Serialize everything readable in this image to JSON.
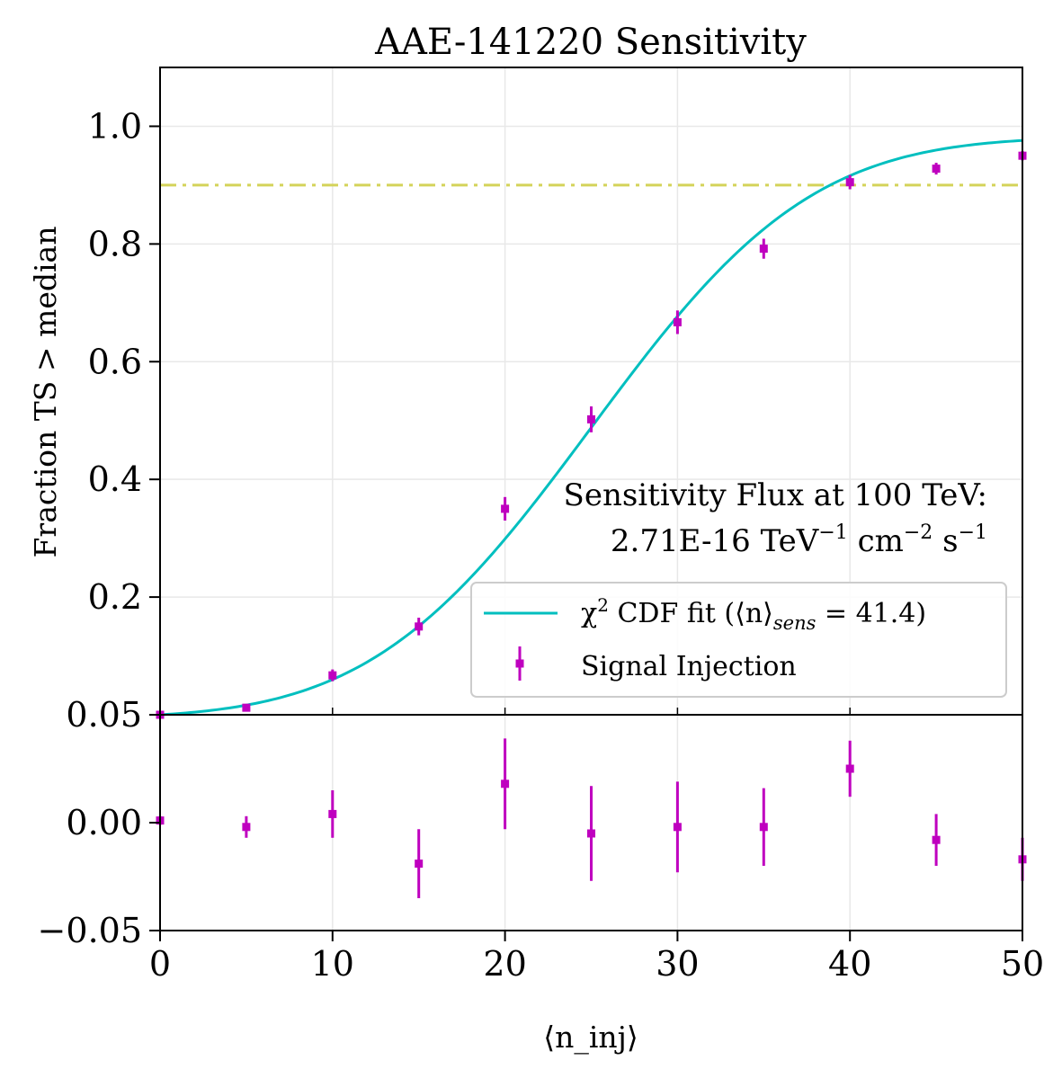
{
  "chart_data": {
    "type": "scatter",
    "title": "AAE-141220 Sensitivity",
    "xlabel": "⟨n_inj⟩",
    "ylabel": "Fraction TS > median",
    "xlim": [
      0,
      50
    ],
    "top_panel": {
      "ylim": [
        0.0,
        1.1
      ],
      "yticks": [
        0.05,
        0.2,
        0.4,
        0.6,
        0.8,
        1.0
      ],
      "ytick_labels": [
        "0.05",
        "0.2",
        "0.4",
        "0.6",
        "0.8",
        "1.0"
      ],
      "threshold": 0.9,
      "threshold_color": "#d4d35a",
      "fit_color": "#00bfbf",
      "fit_sens": 41.4,
      "fit_sigma_scale": 10.0
    },
    "bottom_panel": {
      "ylim": [
        -0.05,
        0.05
      ],
      "yticks": [
        -0.05,
        0.0,
        0.05
      ],
      "ytick_labels": [
        "−0.05",
        "0.00",
        "0.05"
      ]
    },
    "xticks": [
      0,
      10,
      20,
      30,
      40,
      50
    ],
    "xtick_labels": [
      "0",
      "10",
      "20",
      "30",
      "40",
      "50"
    ],
    "marker_color": "#bf00bf",
    "series": [
      {
        "name": "Signal Injection",
        "x": [
          0,
          5,
          10,
          15,
          20,
          25,
          30,
          35,
          40,
          45,
          50
        ],
        "y": [
          0.0,
          0.012,
          0.067,
          0.15,
          0.35,
          0.502,
          0.667,
          0.792,
          0.905,
          0.928,
          0.95
        ],
        "yerr": [
          0.002,
          0.005,
          0.01,
          0.015,
          0.02,
          0.022,
          0.02,
          0.017,
          0.012,
          0.01,
          0.008
        ],
        "residual": [
          0.001,
          -0.002,
          0.004,
          -0.019,
          0.018,
          -0.005,
          -0.002,
          -0.002,
          0.025,
          -0.008,
          -0.017
        ],
        "residual_err": [
          0.002,
          0.005,
          0.011,
          0.016,
          0.021,
          0.022,
          0.021,
          0.018,
          0.013,
          0.012,
          0.01
        ]
      }
    ],
    "legend": {
      "placement": "lower-right",
      "fit_label_prefix": "χ",
      "fit_label_sup": "2",
      "fit_label_mid": " CDF fit (⟨n⟩",
      "fit_label_sub": "sens",
      "fit_label_end": " = 41.4)",
      "signal_label": "Signal Injection"
    },
    "annotation": {
      "line1": "Sensitivity Flux at 100 TeV:",
      "line2_value": "2.71E-16 TeV",
      "line2_exp1": "−1",
      "line2_unit2": " cm",
      "line2_exp2": "−2",
      "line2_unit3": " s",
      "line2_exp3": "−1"
    },
    "grid": true
  }
}
